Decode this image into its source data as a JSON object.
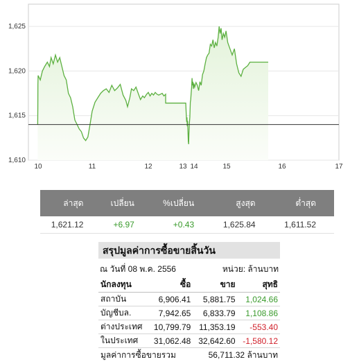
{
  "chart_data": {
    "type": "line",
    "y_ticks": [
      "1,625",
      "1,620",
      "1,615",
      "1,610"
    ],
    "x_ticks": [
      {
        "label": "10",
        "day": 10
      },
      {
        "label": "11",
        "day": 11
      },
      {
        "label": "12",
        "day": 12
      },
      {
        "label": "13",
        "day": 13
      },
      {
        "label": "14",
        "day": 14
      },
      {
        "label": "15",
        "day": 15
      },
      {
        "label": "16",
        "day": 16
      },
      {
        "label": "17",
        "day": 17
      }
    ],
    "ylim": [
      1610,
      1627.5
    ],
    "reference_line": 1614,
    "colors": {
      "line": "#5cb040",
      "fill": "#eef8e8",
      "reference": "#333333"
    },
    "series": [
      {
        "points": [
          [
            9.96,
            1614
          ],
          [
            9.97,
            1616
          ],
          [
            9.98,
            1618.5
          ],
          [
            10.0,
            1619.5
          ],
          [
            10.04,
            1619
          ],
          [
            10.08,
            1620
          ],
          [
            10.12,
            1620.5
          ],
          [
            10.17,
            1621
          ],
          [
            10.21,
            1620.5
          ],
          [
            10.24,
            1621.5
          ],
          [
            10.28,
            1620.8
          ],
          [
            10.32,
            1621.8
          ],
          [
            10.36,
            1621
          ],
          [
            10.4,
            1621.5
          ],
          [
            10.44,
            1620.5
          ],
          [
            10.48,
            1619.5
          ],
          [
            10.52,
            1619
          ],
          [
            10.56,
            1617.5
          ],
          [
            10.6,
            1617
          ],
          [
            10.64,
            1616
          ],
          [
            10.68,
            1614.5
          ],
          [
            10.72,
            1614
          ],
          [
            10.76,
            1613.5
          ],
          [
            10.8,
            1613.2
          ],
          [
            10.84,
            1612.5
          ],
          [
            10.88,
            1612.2
          ],
          [
            10.92,
            1612.6
          ],
          [
            10.96,
            1614
          ],
          [
            11.0,
            1615.5
          ],
          [
            11.05,
            1616.5
          ],
          [
            11.1,
            1617
          ],
          [
            11.15,
            1617.5
          ],
          [
            11.2,
            1617.8
          ],
          [
            11.25,
            1618
          ],
          [
            11.3,
            1617.6
          ],
          [
            11.35,
            1618.4
          ],
          [
            11.4,
            1617.8
          ],
          [
            11.45,
            1618.1
          ],
          [
            11.5,
            1618.5
          ],
          [
            11.55,
            1617.3
          ],
          [
            11.6,
            1616.7
          ],
          [
            11.63,
            1616
          ],
          [
            11.67,
            1617
          ],
          [
            11.7,
            1618
          ],
          [
            11.74,
            1617.8
          ],
          [
            11.78,
            1618.2
          ],
          [
            11.82,
            1617.5
          ],
          [
            11.86,
            1616.8
          ],
          [
            11.9,
            1617.2
          ],
          [
            11.93,
            1617
          ],
          [
            11.97,
            1617.4
          ],
          [
            12.0,
            1617.6
          ],
          [
            12.05,
            1617.2
          ],
          [
            12.1,
            1617.5
          ],
          [
            12.15,
            1617.3
          ],
          [
            12.2,
            1617.6
          ],
          [
            12.25,
            1617.4
          ],
          [
            12.3,
            1617.3
          ],
          [
            12.35,
            1617.4
          ],
          [
            12.4,
            1617.5
          ],
          [
            12.45,
            1617.2
          ],
          [
            12.5,
            1617.4
          ],
          [
            12.5,
            1616.4
          ],
          [
            12.9,
            1616.4
          ],
          [
            12.95,
            1616.4
          ],
          [
            13.0,
            1616.4
          ],
          [
            13.05,
            1616.4
          ],
          [
            13.1,
            1616.4
          ],
          [
            13.15,
            1616.4
          ],
          [
            13.25,
            1616.4
          ],
          [
            13.3,
            1615
          ],
          [
            13.33,
            1614.3
          ],
          [
            13.36,
            1614.8
          ],
          [
            13.39,
            1613.8
          ],
          [
            13.42,
            1614.4
          ],
          [
            13.45,
            1613.2
          ],
          [
            13.48,
            1612.1
          ],
          [
            13.51,
            1611.8
          ],
          [
            13.54,
            1613
          ],
          [
            13.58,
            1614.2
          ],
          [
            13.62,
            1614.8
          ],
          [
            13.66,
            1616.5
          ],
          [
            13.7,
            1616.8
          ],
          [
            13.74,
            1617.5
          ],
          [
            13.78,
            1618.2
          ],
          [
            13.82,
            1619.2
          ],
          [
            13.86,
            1618.4
          ],
          [
            13.9,
            1618.8
          ],
          [
            13.94,
            1618
          ],
          [
            13.98,
            1618.6
          ],
          [
            14.02,
            1618.2
          ],
          [
            14.06,
            1618.7
          ],
          [
            14.1,
            1618.4
          ],
          [
            14.14,
            1617.8
          ],
          [
            14.18,
            1618.8
          ],
          [
            14.22,
            1618.4
          ],
          [
            14.26,
            1619.6
          ],
          [
            14.3,
            1620
          ],
          [
            14.34,
            1620.8
          ],
          [
            14.38,
            1621.5
          ],
          [
            14.42,
            1621.8
          ],
          [
            14.46,
            1622
          ],
          [
            14.5,
            1623
          ],
          [
            14.54,
            1622.8
          ],
          [
            14.58,
            1623.5
          ],
          [
            14.62,
            1622.6
          ],
          [
            14.66,
            1623.2
          ],
          [
            14.7,
            1622.8
          ],
          [
            14.74,
            1623.8
          ],
          [
            14.77,
            1625
          ],
          [
            14.8,
            1624.2
          ],
          [
            14.83,
            1624.8
          ],
          [
            14.86,
            1623.5
          ],
          [
            14.9,
            1624.2
          ],
          [
            14.94,
            1623.8
          ],
          [
            14.98,
            1624.5
          ],
          [
            15.02,
            1623.2
          ],
          [
            15.06,
            1622.5
          ],
          [
            15.1,
            1621.8
          ],
          [
            15.14,
            1622.5
          ],
          [
            15.18,
            1620.8
          ],
          [
            15.22,
            1619.8
          ],
          [
            15.26,
            1619.4
          ],
          [
            15.3,
            1620.2
          ],
          [
            15.34,
            1620.4
          ],
          [
            15.38,
            1620.6
          ],
          [
            15.42,
            1621
          ],
          [
            15.45,
            1621
          ],
          [
            15.75,
            1621
          ]
        ]
      }
    ]
  },
  "index_table": {
    "headers": [
      "ล่าสุด",
      "เปลี่ยน",
      "%เปลี่ยน",
      "สูงสุด",
      "ต่ำสุด"
    ],
    "values": [
      "1,621.12",
      "+6.97",
      "+0.43",
      "1,625.84",
      "1,611.52"
    ]
  },
  "summary": {
    "title": "สรุปมูลค่าการซื้อขายสิ้นวัน",
    "date": "ณ วันที่ 08 พ.ค. 2556",
    "unit": "หน่วย: ล้านบาท",
    "headers": [
      "นักลงทุน",
      "ซื้อ",
      "ขาย",
      "สุทธิ"
    ],
    "rows": [
      {
        "investor": "สถาบัน",
        "buy": "6,906.41",
        "sell": "5,881.75",
        "net": "1,024.66"
      },
      {
        "investor": "บัญชีบล.",
        "buy": "7,942.65",
        "sell": "6,833.79",
        "net": "1,108.86"
      },
      {
        "investor": "ต่างประเทศ",
        "buy": "10,799.79",
        "sell": "11,353.19",
        "net": "-553.40"
      },
      {
        "investor": "ในประเทศ",
        "buy": "31,062.48",
        "sell": "32,642.60",
        "net": "-1,580.12"
      }
    ],
    "total_label": "มูลค่าการซื้อขายรวม",
    "total_value": "56,711.32 ล้านบาท"
  }
}
